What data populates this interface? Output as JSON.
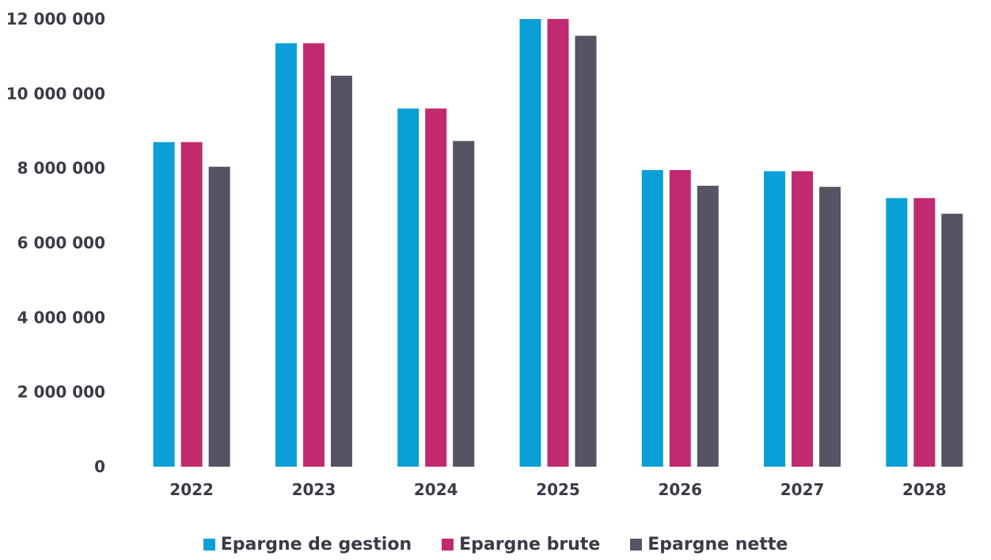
{
  "chart_data": {
    "type": "bar",
    "categories": [
      "2022",
      "2023",
      "2024",
      "2025",
      "2026",
      "2027",
      "2028"
    ],
    "series": [
      {
        "name": "Epargne de gestion",
        "color": "#0a9fd6",
        "values": [
          8700000,
          11350000,
          9600000,
          12000000,
          7950000,
          7920000,
          7200000
        ]
      },
      {
        "name": "Epargne brute",
        "color": "#c12a6e",
        "values": [
          8700000,
          11350000,
          9600000,
          12000000,
          7950000,
          7920000,
          7200000
        ]
      },
      {
        "name": "Epargne nette",
        "color": "#565463",
        "values": [
          8040000,
          10480000,
          8730000,
          11550000,
          7530000,
          7500000,
          6780000
        ]
      }
    ],
    "yticks": [
      "0",
      "2 000 000",
      "4 000 000",
      "6 000 000",
      "8 000 000",
      "10 000 000",
      "12 000 000"
    ],
    "ylim": [
      0,
      12000000
    ],
    "grid": false,
    "legend_position": "bottom"
  }
}
